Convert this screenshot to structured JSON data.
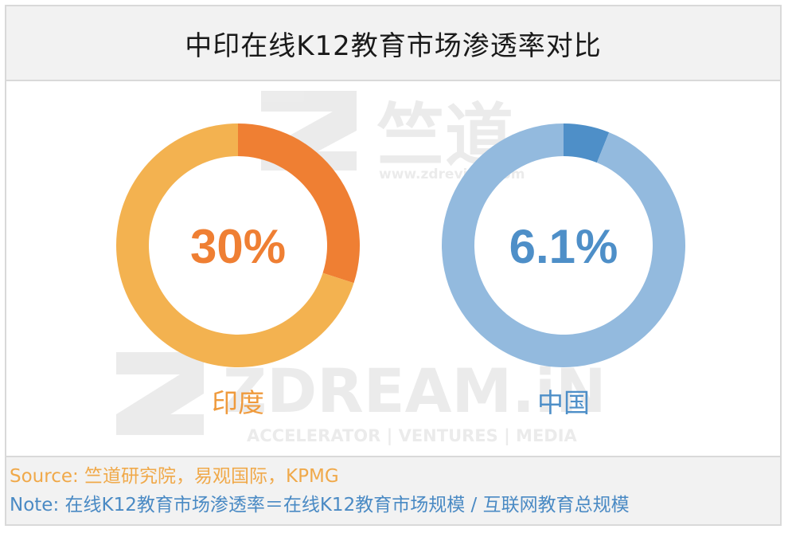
{
  "title": "中印在线K12教育市场渗透率对比",
  "footer": {
    "source": "Source: 竺道研究院，易观国际，KPMG",
    "note": "Note: 在线K12教育市场渗透率＝在线K12教育市场规模 / 互联网教育总规模"
  },
  "watermark": {
    "logo_text": "竺道",
    "url": "www.zdreview.com",
    "brand": "ZDREAM.iN",
    "tagline": "ACCELERATOR | VENTURES | MEDIA"
  },
  "colors": {
    "india_value": "#ef7f33",
    "india_rest": "#f3b250",
    "china_value": "#4e8fc8",
    "china_rest": "#93bade"
  },
  "chart_data": [
    {
      "type": "pie",
      "variant": "donut",
      "center_label": "30%",
      "label": "印度",
      "values": [
        30,
        70
      ],
      "unit": "%"
    },
    {
      "type": "pie",
      "variant": "donut",
      "center_label": "6.1%",
      "label": "中国",
      "values": [
        6.1,
        93.9
      ],
      "unit": "%"
    }
  ]
}
